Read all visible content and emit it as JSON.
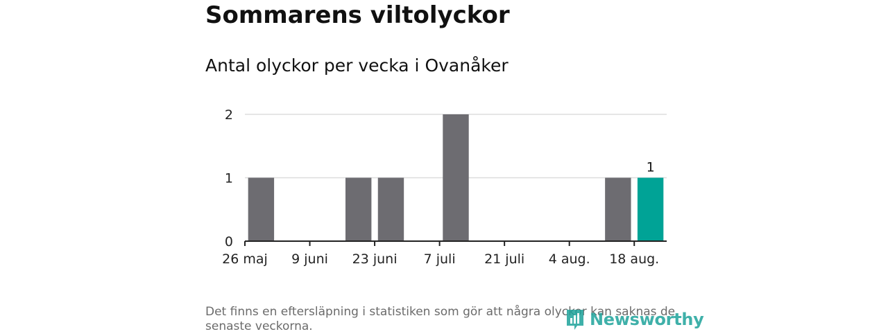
{
  "title": "Sommarens viltolyckor",
  "subtitle": "Antal olyckor per vecka i Ovanåker",
  "footnote": "Det finns en eftersläpning i statistiken som gör att några olyckor kan saknas de senaste veckorna.",
  "logo_text": "Newsworthy",
  "colors": {
    "bar": "#6d6c71",
    "highlight": "#00a396",
    "grid": "#dddddd",
    "axis": "#222222",
    "logo": "#1ea39b"
  },
  "chart_data": {
    "type": "bar",
    "x": [
      "2024-05-27",
      "2024-06-03",
      "2024-06-10",
      "2024-06-17",
      "2024-06-24",
      "2024-07-01",
      "2024-07-08",
      "2024-07-15",
      "2024-07-22",
      "2024-07-29",
      "2024-08-05",
      "2024-08-12",
      "2024-08-19"
    ],
    "values": [
      1,
      0,
      0,
      1,
      1,
      0,
      2,
      0,
      0,
      0,
      0,
      1,
      1
    ],
    "highlight_index": 12,
    "data_labels": [
      {
        "index": 12,
        "text": "1"
      }
    ],
    "x_ticks": [
      "26 maj",
      "9 juni",
      "23 juni",
      "7 juli",
      "21 juli",
      "4 aug.",
      "18 aug."
    ],
    "y_ticks": [
      "0",
      "1",
      "2"
    ],
    "ylim": [
      0,
      2
    ],
    "grid": true
  }
}
